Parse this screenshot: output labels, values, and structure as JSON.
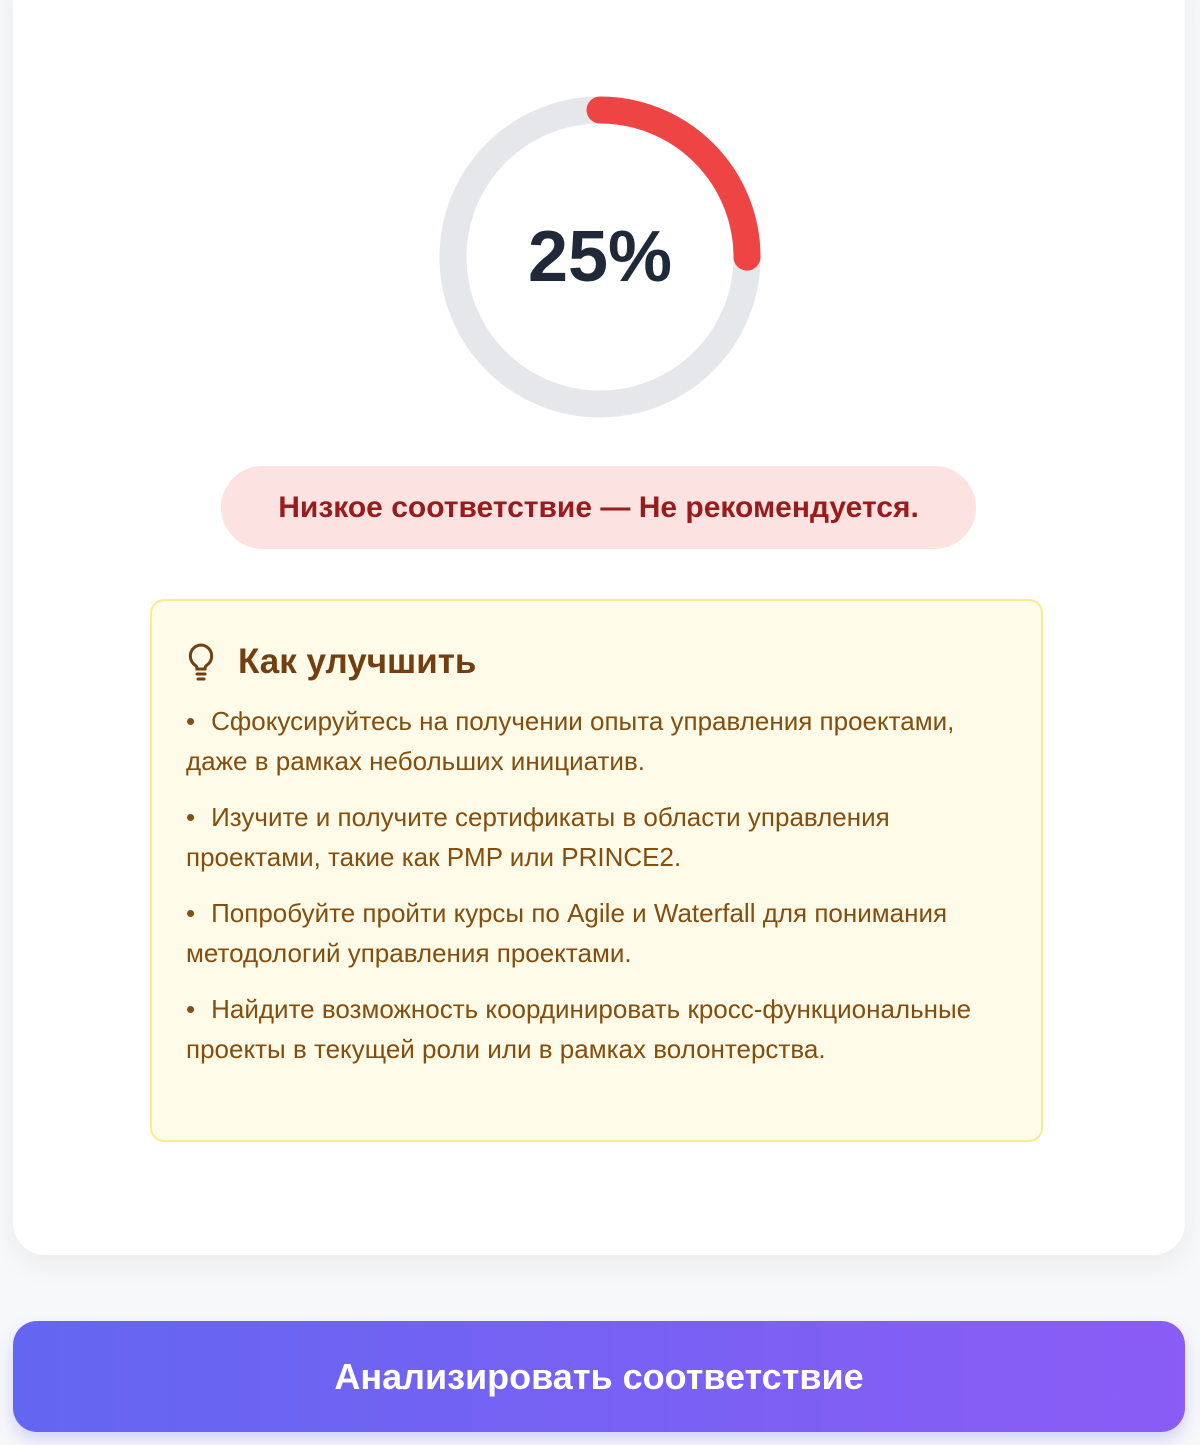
{
  "score": {
    "value": 25,
    "label": "25%",
    "color": "#ef4444",
    "track_color": "#e5e7eb"
  },
  "verdict": "Низкое соответствие — Не рекомендуется.",
  "tips": {
    "icon": "lightbulb-icon",
    "title": "Как улучшить",
    "items": [
      "Сфокусируйтесь на получении опыта управления проектами, даже в рамках небольших инициатив.",
      "Изучите и получите сертификаты в области управления проектами, такие как PMP или PRINCE2.",
      "Попробуйте пройти курсы по Agile и Waterfall для понимания методологий управления проектами.",
      "Найдите возможность координировать кросс-функциональные проекты в текущей роли или в рамках волонтерства."
    ]
  },
  "action_button": "Анализировать соответствие"
}
